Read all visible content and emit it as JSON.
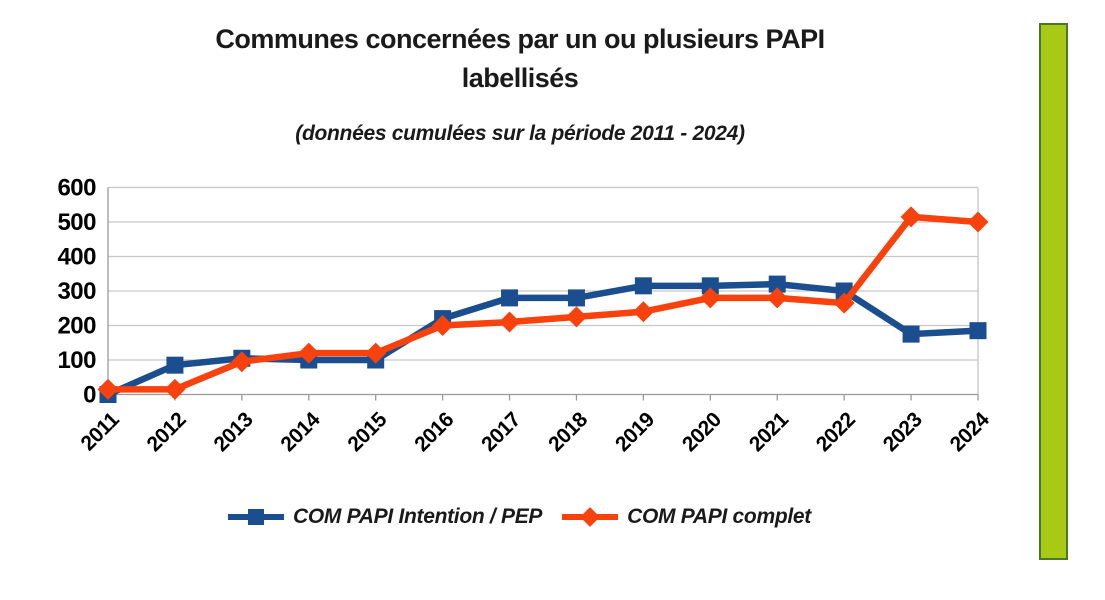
{
  "page": {
    "background": "#ffffff"
  },
  "chart_data": {
    "type": "line",
    "title": "Communes concernées par un ou plusieurs PAPI labellisés",
    "subtitle": "(données cumulées sur la période 2011 - 2024)",
    "categories": [
      "2011",
      "2012",
      "2013",
      "2014",
      "2015",
      "2016",
      "2017",
      "2018",
      "2019",
      "2020",
      "2021",
      "2022",
      "2023",
      "2024"
    ],
    "series": [
      {
        "name": "COM PAPI Intention / PEP",
        "color": "#1b4e8e",
        "marker": "square",
        "values": [
          0,
          85,
          105,
          100,
          100,
          220,
          280,
          280,
          315,
          315,
          320,
          300,
          175,
          185
        ]
      },
      {
        "name": "COM PAPI complet",
        "color": "#f8420e",
        "marker": "diamond",
        "values": [
          15,
          15,
          95,
          120,
          120,
          200,
          210,
          225,
          240,
          280,
          280,
          265,
          515,
          500
        ]
      }
    ],
    "xlabel": "",
    "ylabel": "",
    "ylim": [
      0,
      600
    ],
    "ytick_step": 100,
    "yticks": [
      "0",
      "100",
      "200",
      "300",
      "400",
      "500",
      "600"
    ],
    "grid": true,
    "legend_position": "bottom",
    "grid_color": "#c6c6c6",
    "axis_color": "#9a9a9a",
    "text_color": "#000000"
  },
  "decor": {
    "right_bar": {
      "fill": "#a8ca14",
      "border": "#49772c"
    }
  }
}
